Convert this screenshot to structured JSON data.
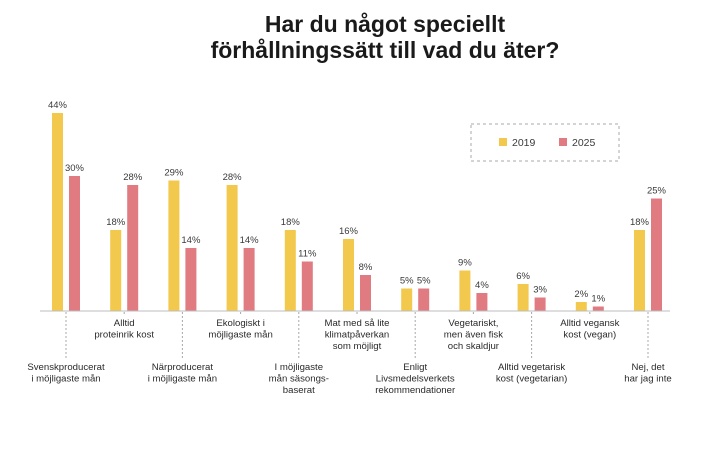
{
  "chart_data": {
    "type": "bar",
    "title": [
      "Har du något speciellt",
      "förhållningssätt till vad du äter?"
    ],
    "categories": [
      [
        "Svenskproducerat",
        "i möjligaste mån"
      ],
      [
        "Alltid",
        "proteinrik kost"
      ],
      [
        "Närproducerat",
        "i möjligaste mån"
      ],
      [
        "Ekologiskt i",
        "möjligaste mån"
      ],
      [
        "I möjligaste",
        "mån säsongs-",
        "baserat"
      ],
      [
        "Mat med så lite",
        "klimatpåverkan",
        "som möjligt"
      ],
      [
        "Enligt",
        "Livsmedelsverkets",
        "rekommendationer"
      ],
      [
        "Vegetariskt,",
        "men även fisk",
        "och skaldjur"
      ],
      [
        "Alltid vegetarisk",
        "kost (vegetarian)"
      ],
      [
        "Alltid vegansk",
        "kost (vegan)"
      ],
      [
        "Nej, det",
        "har jag inte"
      ]
    ],
    "series": [
      {
        "name": "2019",
        "color": "#f2c94c",
        "values": [
          44,
          18,
          29,
          28,
          18,
          16,
          5,
          9,
          6,
          2,
          18
        ],
        "labels": [
          "44%",
          "18%",
          "29%",
          "28%",
          "18%",
          "16%",
          "5%",
          "9%",
          "6%",
          "2%",
          "18%"
        ]
      },
      {
        "name": "2025",
        "color": "#e07b82",
        "values": [
          30,
          28,
          14,
          14,
          11,
          8,
          5,
          4,
          3,
          1,
          25
        ],
        "labels": [
          "30%",
          "28%",
          "14%",
          "14%",
          "11%",
          "8%",
          "5%",
          "4%",
          "3%",
          "1%",
          "25%"
        ]
      }
    ],
    "ylim": [
      0,
      44
    ],
    "legend": "top-right",
    "grid": false
  }
}
